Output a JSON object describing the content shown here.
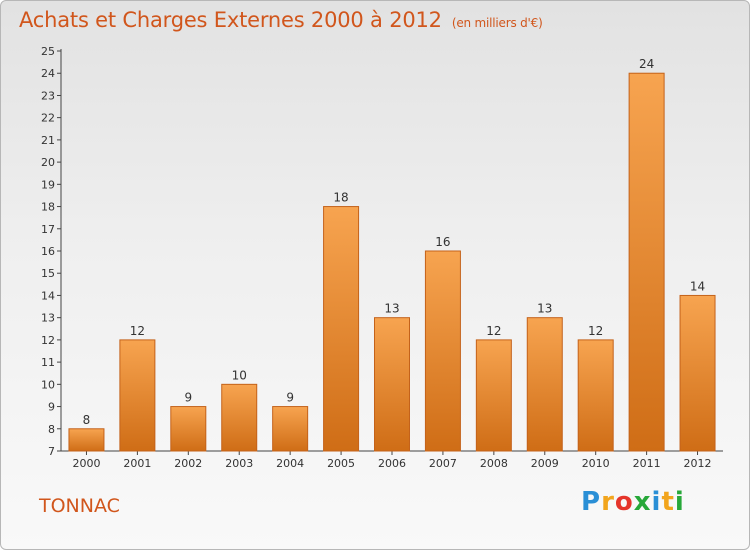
{
  "header": {
    "title": "Achats et Charges Externes 2000 à 2012",
    "subtitle": "(en milliers d'€)"
  },
  "footer": {
    "city": "TONNAC",
    "logo": {
      "letters": [
        "P",
        "r",
        "o",
        "x",
        "i",
        "t",
        "i"
      ],
      "colors": [
        "#2a8fd6",
        "#f2a51d",
        "#e5352b",
        "#27a839",
        "#2a8fd6",
        "#f2a51d",
        "#27a839"
      ]
    }
  },
  "chart_data": {
    "type": "bar",
    "title": "Achats et Charges Externes 2000 à 2012",
    "subtitle": "(en milliers d'€)",
    "categories": [
      "2000",
      "2001",
      "2002",
      "2003",
      "2004",
      "2005",
      "2006",
      "2007",
      "2008",
      "2009",
      "2010",
      "2011",
      "2012"
    ],
    "values": [
      8,
      12,
      9,
      10,
      9,
      18,
      13,
      16,
      12,
      13,
      12,
      24,
      14
    ],
    "ylim": [
      7,
      25
    ],
    "yticks": [
      7,
      8,
      9,
      10,
      11,
      12,
      13,
      14,
      15,
      16,
      17,
      18,
      19,
      20,
      21,
      22,
      23,
      24,
      25
    ],
    "grid": false,
    "bar_color_top": "#f7a450",
    "bar_color_bottom": "#cf6d16",
    "bar_border": "#c4621a"
  }
}
